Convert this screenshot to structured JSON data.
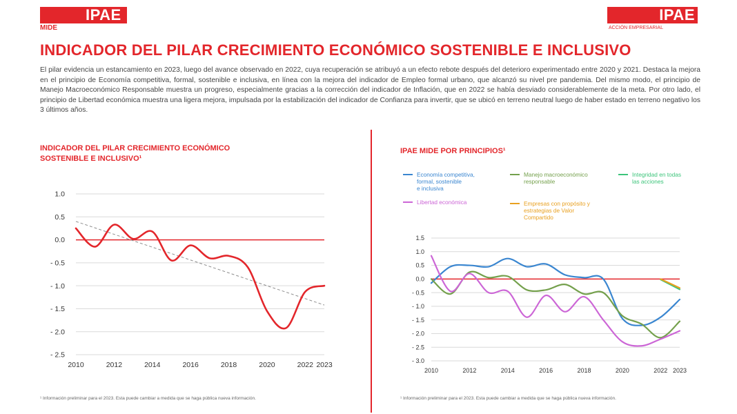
{
  "header": {
    "logo_left": "IPAE",
    "logo_left_sub": "MIDE",
    "logo_right": "IPAE",
    "logo_right_sub": "ACCIÓN EMPRESARIAL",
    "title": "INDICADOR DEL PILAR CRECIMIENTO ECONÓMICO SOSTENIBLE E INCLUSIVO"
  },
  "intro": "El pilar evidencia un estancamiento en 2023, luego del avance observado en 2022, cuya recuperación se atribuyó a un efecto rebote después del deterioro experimentado entre 2020 y 2021. Destaca la mejora en el principio de Economía competitiva, formal, sostenible e inclusiva, en línea con la mejora del indicador de Empleo formal urbano, que alcanzó su nivel pre pandemia. Del mismo modo, el principio de Manejo Macroeconómico Responsable muestra un progreso, especialmente gracias a la corrección del indicador de Inflación, que en 2022 se había desviado considerablemente de la meta. Por otro lado, el principio de Libertad económica muestra una ligera mejora, impulsada por la estabilización del indicador de Confianza para invertir, que se ubicó en terreno neutral luego de haber estado en terreno negativo los 3 últimos años.",
  "colors": {
    "brand_red": "#e3262b"
  },
  "chart_data": [
    {
      "type": "line",
      "title_line1": "INDICADOR DEL PILAR CRECIMIENTO ECONÓMICO",
      "title_line2": "SOSTENIBLE E INCLUSIVO¹",
      "x": [
        2010,
        2011,
        2012,
        2013,
        2014,
        2015,
        2016,
        2017,
        2018,
        2019,
        2020,
        2021,
        2022,
        2023
      ],
      "series": [
        {
          "values": [
            0.25,
            -0.15,
            0.33,
            0.02,
            0.18,
            -0.45,
            -0.12,
            -0.4,
            -0.35,
            -0.6,
            -1.55,
            -1.92,
            -1.13,
            -1.0
          ],
          "color": "#e3262b"
        }
      ],
      "trendline": {
        "start": [
          2010,
          0.4
        ],
        "end": [
          2023,
          -1.42
        ],
        "color": "#8c8c8c",
        "style": "dashed"
      },
      "reference_line": {
        "y": 0,
        "color": "#e3262b"
      },
      "ylim": [
        -2.5,
        1.0
      ],
      "y_ticks": [
        1.0,
        0.5,
        0.0,
        -0.5,
        -1.0,
        -1.5,
        -2.0,
        -2.5
      ],
      "y_tick_labels": [
        "1.0",
        "0.5",
        "0.0",
        "- 0.5",
        "- 1.0",
        "- 1.5",
        "- 2.0",
        "- 2.5"
      ],
      "x_tick_labels": [
        "2010",
        "2012",
        "2014",
        "2016",
        "2018",
        "2020",
        "2022",
        "2023"
      ],
      "grid": true,
      "footnote": "¹ Información preliminar para el 2023. Esta puede cambiar a medida que se haga pública nueva información."
    },
    {
      "type": "line",
      "title": "IPAE MIDE POR PRINCIPIOS¹",
      "x": [
        2010,
        2011,
        2012,
        2013,
        2014,
        2015,
        2016,
        2017,
        2018,
        2019,
        2020,
        2021,
        2022,
        2023
      ],
      "series": [
        {
          "name": "Economía competitiva, formal, sostenible e inclusiva",
          "name_lines": [
            "Economía competitiva,",
            "formal, sostenible",
            "e inclusiva"
          ],
          "color": "#3a86d0",
          "values": [
            -0.15,
            0.45,
            0.5,
            0.45,
            0.75,
            0.45,
            0.55,
            0.15,
            0.05,
            0.0,
            -1.45,
            -1.7,
            -1.4,
            -0.75
          ]
        },
        {
          "name": "Manejo macroeconómico responsable",
          "name_lines": [
            "Manejo macroeconómico",
            "responsable"
          ],
          "color": "#74a04c",
          "values": [
            0.0,
            -0.55,
            0.25,
            0.05,
            0.1,
            -0.4,
            -0.4,
            -0.2,
            -0.55,
            -0.5,
            -1.35,
            -1.65,
            -2.15,
            -1.55
          ]
        },
        {
          "name": "Integridad en todas las acciones",
          "name_lines": [
            "Integridad en todas",
            "las acciones"
          ],
          "color": "#3cc47a",
          "values": [
            null,
            null,
            null,
            null,
            null,
            null,
            null,
            null,
            null,
            null,
            null,
            null,
            -0.02,
            -0.38
          ]
        },
        {
          "name": "Libertad económica",
          "name_lines": [
            "Libertad económica"
          ],
          "color": "#cc66d6",
          "values": [
            0.85,
            -0.45,
            0.2,
            -0.5,
            -0.45,
            -1.4,
            -0.6,
            -1.2,
            -0.65,
            -1.5,
            -2.3,
            -2.45,
            -2.2,
            -1.9
          ]
        },
        {
          "name": "Empresas con propósito y estrategias de Valor Compartido",
          "name_lines": [
            "Empresas con propósito y",
            "estrategias de Valor",
            "Compartido"
          ],
          "color": "#e8a020",
          "values": [
            null,
            null,
            null,
            null,
            null,
            null,
            null,
            null,
            null,
            null,
            null,
            null,
            0.0,
            -0.33
          ]
        }
      ],
      "reference_line": {
        "y": 0,
        "color": "#e3262b"
      },
      "ylim": [
        -3.0,
        1.5
      ],
      "y_ticks": [
        1.5,
        1.0,
        0.5,
        0.0,
        -0.5,
        -1.0,
        -1.5,
        -2.0,
        -2.5,
        -3.0
      ],
      "y_tick_labels": [
        "1.5",
        "1.0",
        "0.5",
        "0.0",
        "- 0.5",
        "- 1.0",
        "- 1.5",
        "- 2.0",
        "- 2.5",
        "- 3.0"
      ],
      "x_tick_labels": [
        "2010",
        "2012",
        "2014",
        "2016",
        "2018",
        "2020",
        "2022",
        "2023"
      ],
      "grid": true,
      "legend_position": "top",
      "footnote": "¹ Información preliminar para el 2023. Esta puede cambiar a medida que se haga pública nueva información."
    }
  ]
}
